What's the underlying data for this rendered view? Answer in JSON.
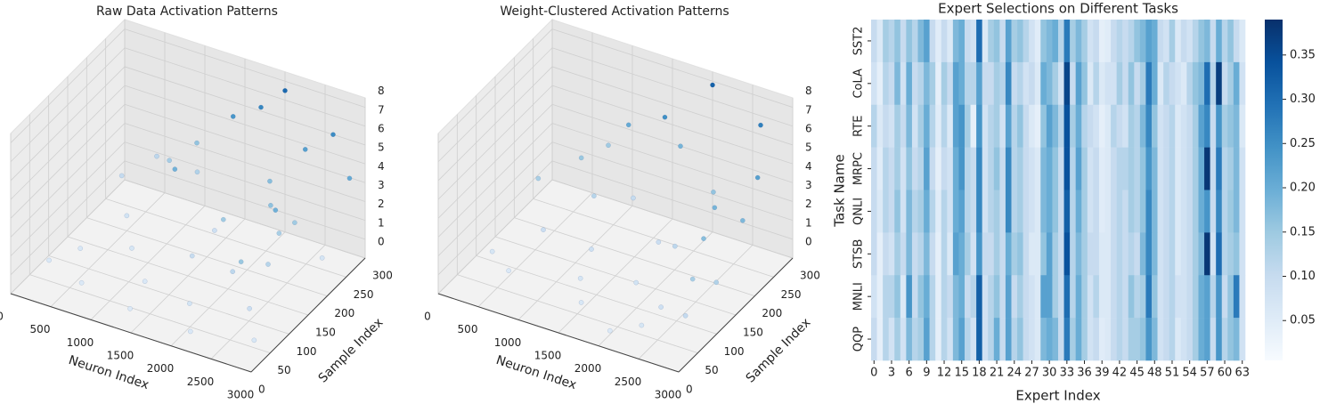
{
  "chart_data": [
    {
      "type": "scatter3d",
      "title": "Raw Data Activation Patterns",
      "xlabel": "Neuron Index",
      "ylabel": "Sample Index",
      "colormap": "Blues",
      "xlim": [
        0,
        3000
      ],
      "ylim": [
        0,
        300
      ],
      "zlim": [
        0,
        8.5
      ],
      "xticks": [
        0,
        500,
        1000,
        1500,
        2000,
        2500,
        3000
      ],
      "yticks": [
        0,
        50,
        100,
        150,
        200,
        250,
        300
      ],
      "zticks": [
        0,
        1,
        2,
        3,
        4,
        5,
        6,
        7,
        8
      ],
      "x": [
        200,
        500,
        800,
        1000,
        1200,
        1500,
        1800,
        2000,
        2200,
        2400,
        2500,
        2600,
        2700,
        2800,
        300,
        600,
        900,
        1100,
        1400,
        1700,
        2000,
        2300,
        2600,
        2900,
        2400,
        2450,
        2500,
        100,
        1300,
        2100,
        1600,
        700,
        400,
        1900,
        2200
      ],
      "y": [
        250,
        200,
        150,
        280,
        100,
        220,
        180,
        260,
        120,
        200,
        150,
        80,
        250,
        50,
        120,
        60,
        300,
        200,
        290,
        300,
        300,
        290,
        300,
        280,
        100,
        180,
        220,
        80,
        40,
        30,
        140,
        270,
        300,
        70,
        220
      ],
      "z": [
        1.5,
        0.8,
        0.5,
        2.2,
        0.3,
        1.0,
        2.8,
        3.5,
        1.8,
        2.5,
        2.0,
        1.2,
        0.6,
        0.4,
        0.4,
        0.2,
        3.2,
        4.1,
        5.5,
        6.2,
        7.5,
        5.0,
        6.0,
        4.5,
        3.0,
        4.2,
        2.8,
        0.3,
        0.2,
        0.3,
        1.4,
        2.6,
        1.8,
        0.7,
        3.3
      ]
    },
    {
      "type": "scatter3d",
      "title": "Weight-Clustered Activation Patterns",
      "xlabel": "Neuron Index",
      "ylabel": "Sample Index",
      "colormap": "Blues",
      "xlim": [
        0,
        3000
      ],
      "ylim": [
        0,
        300
      ],
      "zlim": [
        0,
        8.5
      ],
      "xticks": [
        0,
        500,
        1000,
        1500,
        2000,
        2500,
        3000
      ],
      "yticks": [
        0,
        50,
        100,
        150,
        200,
        250,
        300
      ],
      "zticks": [
        0,
        1,
        2,
        3,
        4,
        5,
        6,
        7,
        8
      ],
      "x": [
        300,
        600,
        600,
        900,
        1200,
        1500,
        2000,
        2600,
        2800,
        2500,
        2600,
        2700,
        2800,
        2900,
        2400,
        2300,
        1200,
        1300,
        1800,
        1900,
        200,
        1000,
        1600,
        2200,
        500,
        1500,
        2100,
        700,
        2000,
        2850
      ],
      "y": [
        200,
        250,
        150,
        220,
        260,
        280,
        300,
        300,
        250,
        200,
        150,
        100,
        60,
        120,
        80,
        50,
        150,
        100,
        200,
        120,
        100,
        290,
        300,
        260,
        80,
        60,
        180,
        300,
        30,
        200
      ],
      "z": [
        2.5,
        3.0,
        1.2,
        2.0,
        1.5,
        5.8,
        7.8,
        6.5,
        5.0,
        4.0,
        3.5,
        2.5,
        1.5,
        2.2,
        1.0,
        0.5,
        1.0,
        0.6,
        1.2,
        0.8,
        0.5,
        4.5,
        4.0,
        3.2,
        0.3,
        0.4,
        1.8,
        2.8,
        0.2,
        3.8
      ]
    },
    {
      "type": "heatmap",
      "title": "Expert Selections on Different Tasks",
      "xlabel": "Expert Index",
      "ylabel": "Task Name",
      "colormap": "Blues",
      "x": [
        0,
        null,
        null,
        3,
        null,
        null,
        6,
        null,
        null,
        9,
        null,
        null,
        12,
        null,
        null,
        15,
        null,
        null,
        18,
        null,
        null,
        21,
        null,
        null,
        24,
        null,
        null,
        27,
        null,
        null,
        30,
        null,
        null,
        33,
        null,
        null,
        36,
        null,
        null,
        39,
        null,
        null,
        42,
        null,
        null,
        45,
        null,
        null,
        48,
        null,
        null,
        51,
        null,
        null,
        54,
        null,
        null,
        57,
        null,
        null,
        60,
        null,
        null,
        63
      ],
      "y": [
        "SST2",
        "CoLA",
        "RTE",
        "MRPC",
        "QNLI",
        "STSB",
        "MNLI",
        "QQP"
      ],
      "clim": [
        0.005,
        0.39
      ],
      "cticks": [
        0.05,
        0.1,
        0.15,
        0.2,
        0.25,
        0.3,
        0.35
      ],
      "values": [
        [
          0.1,
          0.06,
          0.14,
          0.12,
          0.16,
          0.1,
          0.16,
          0.12,
          0.18,
          0.22,
          0.1,
          0.05,
          0.1,
          0.06,
          0.18,
          0.2,
          0.1,
          0.08,
          0.3,
          0.06,
          0.14,
          0.16,
          0.1,
          0.22,
          0.14,
          0.16,
          0.12,
          0.08,
          0.05,
          0.16,
          0.18,
          0.2,
          0.12,
          0.28,
          0.14,
          0.18,
          0.14,
          0.08,
          0.1,
          0.04,
          0.05,
          0.1,
          0.12,
          0.1,
          0.12,
          0.16,
          0.18,
          0.22,
          0.2,
          0.1,
          0.08,
          0.14,
          0.06,
          0.1,
          0.08,
          0.12,
          0.16,
          0.18,
          0.1,
          0.2,
          0.12,
          0.16,
          0.1,
          0.06
        ],
        [
          0.08,
          0.04,
          0.12,
          0.1,
          0.18,
          0.08,
          0.2,
          0.1,
          0.12,
          0.18,
          0.14,
          0.04,
          0.14,
          0.1,
          0.22,
          0.2,
          0.12,
          0.12,
          0.22,
          0.1,
          0.1,
          0.14,
          0.12,
          0.26,
          0.1,
          0.12,
          0.08,
          0.1,
          0.06,
          0.2,
          0.18,
          0.14,
          0.08,
          0.36,
          0.1,
          0.22,
          0.16,
          0.06,
          0.12,
          0.06,
          0.08,
          0.08,
          0.14,
          0.1,
          0.16,
          0.1,
          0.14,
          0.28,
          0.2,
          0.06,
          0.12,
          0.1,
          0.08,
          0.06,
          0.12,
          0.16,
          0.18,
          0.3,
          0.12,
          0.37,
          0.1,
          0.14,
          0.2,
          0.08
        ],
        [
          0.12,
          0.06,
          0.1,
          0.08,
          0.14,
          0.1,
          0.18,
          0.08,
          0.14,
          0.2,
          0.12,
          0.05,
          0.12,
          0.06,
          0.22,
          0.24,
          0.14,
          0.04,
          0.24,
          0.08,
          0.12,
          0.14,
          0.08,
          0.22,
          0.12,
          0.16,
          0.1,
          0.06,
          0.04,
          0.16,
          0.22,
          0.18,
          0.12,
          0.34,
          0.14,
          0.2,
          0.12,
          0.1,
          0.08,
          0.04,
          0.06,
          0.12,
          0.1,
          0.08,
          0.14,
          0.12,
          0.18,
          0.26,
          0.16,
          0.08,
          0.1,
          0.12,
          0.06,
          0.08,
          0.1,
          0.14,
          0.22,
          0.26,
          0.1,
          0.24,
          0.14,
          0.16,
          0.18,
          0.06
        ],
        [
          0.1,
          0.05,
          0.12,
          0.1,
          0.14,
          0.08,
          0.16,
          0.1,
          0.12,
          0.22,
          0.1,
          0.04,
          0.1,
          0.08,
          0.2,
          0.24,
          0.12,
          0.1,
          0.26,
          0.08,
          0.12,
          0.16,
          0.1,
          0.26,
          0.12,
          0.14,
          0.1,
          0.08,
          0.06,
          0.18,
          0.2,
          0.16,
          0.1,
          0.34,
          0.12,
          0.22,
          0.14,
          0.08,
          0.1,
          0.05,
          0.06,
          0.1,
          0.12,
          0.12,
          0.14,
          0.12,
          0.16,
          0.24,
          0.18,
          0.08,
          0.1,
          0.12,
          0.06,
          0.08,
          0.1,
          0.14,
          0.2,
          0.38,
          0.1,
          0.28,
          0.12,
          0.14,
          0.18,
          0.08
        ],
        [
          0.1,
          0.06,
          0.12,
          0.1,
          0.16,
          0.08,
          0.18,
          0.12,
          0.14,
          0.2,
          0.12,
          0.05,
          0.12,
          0.08,
          0.2,
          0.22,
          0.12,
          0.1,
          0.26,
          0.08,
          0.12,
          0.14,
          0.1,
          0.26,
          0.12,
          0.14,
          0.1,
          0.08,
          0.06,
          0.18,
          0.2,
          0.16,
          0.1,
          0.32,
          0.12,
          0.2,
          0.14,
          0.08,
          0.1,
          0.05,
          0.06,
          0.1,
          0.12,
          0.1,
          0.14,
          0.12,
          0.16,
          0.26,
          0.18,
          0.08,
          0.1,
          0.12,
          0.06,
          0.08,
          0.1,
          0.14,
          0.2,
          0.24,
          0.1,
          0.26,
          0.12,
          0.15,
          0.18,
          0.08
        ],
        [
          0.1,
          0.04,
          0.1,
          0.08,
          0.14,
          0.1,
          0.18,
          0.1,
          0.12,
          0.18,
          0.1,
          0.04,
          0.12,
          0.06,
          0.22,
          0.2,
          0.14,
          0.08,
          0.24,
          0.1,
          0.1,
          0.14,
          0.1,
          0.2,
          0.14,
          0.16,
          0.1,
          0.06,
          0.06,
          0.16,
          0.22,
          0.14,
          0.1,
          0.34,
          0.12,
          0.18,
          0.14,
          0.1,
          0.1,
          0.06,
          0.06,
          0.1,
          0.12,
          0.1,
          0.12,
          0.1,
          0.18,
          0.26,
          0.18,
          0.08,
          0.1,
          0.12,
          0.06,
          0.08,
          0.1,
          0.14,
          0.18,
          0.38,
          0.08,
          0.3,
          0.12,
          0.14,
          0.16,
          0.08
        ],
        [
          0.08,
          0.04,
          0.12,
          0.12,
          0.16,
          0.06,
          0.24,
          0.1,
          0.16,
          0.2,
          0.12,
          0.04,
          0.12,
          0.1,
          0.18,
          0.2,
          0.1,
          0.12,
          0.32,
          0.08,
          0.12,
          0.16,
          0.1,
          0.22,
          0.1,
          0.14,
          0.1,
          0.08,
          0.06,
          0.22,
          0.22,
          0.14,
          0.1,
          0.3,
          0.12,
          0.2,
          0.14,
          0.08,
          0.12,
          0.06,
          0.06,
          0.1,
          0.12,
          0.1,
          0.16,
          0.12,
          0.14,
          0.28,
          0.16,
          0.08,
          0.1,
          0.12,
          0.08,
          0.08,
          0.1,
          0.14,
          0.2,
          0.22,
          0.12,
          0.24,
          0.1,
          0.16,
          0.28,
          0.08
        ],
        [
          0.1,
          0.04,
          0.12,
          0.08,
          0.14,
          0.08,
          0.18,
          0.12,
          0.14,
          0.22,
          0.12,
          0.04,
          0.12,
          0.08,
          0.18,
          0.22,
          0.12,
          0.08,
          0.32,
          0.08,
          0.12,
          0.2,
          0.1,
          0.22,
          0.12,
          0.16,
          0.1,
          0.08,
          0.06,
          0.18,
          0.2,
          0.18,
          0.1,
          0.28,
          0.14,
          0.2,
          0.14,
          0.08,
          0.1,
          0.05,
          0.06,
          0.1,
          0.12,
          0.1,
          0.14,
          0.14,
          0.16,
          0.24,
          0.18,
          0.08,
          0.1,
          0.12,
          0.06,
          0.08,
          0.1,
          0.14,
          0.2,
          0.22,
          0.1,
          0.24,
          0.12,
          0.16,
          0.18,
          0.08
        ]
      ]
    }
  ]
}
